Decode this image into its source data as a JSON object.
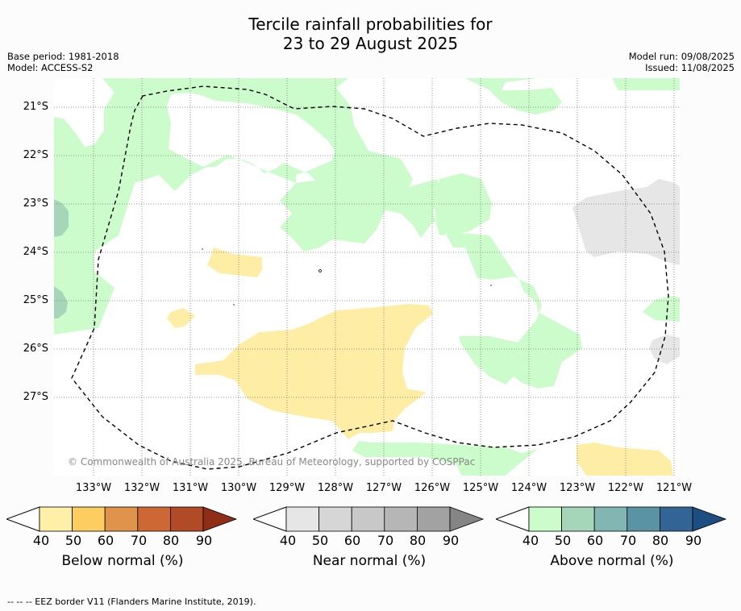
{
  "title": {
    "line1": "Tercile rainfall probabilities for",
    "line2": "23 to 29 August 2025"
  },
  "meta": {
    "base_period": "Base period: 1981-2018",
    "model": "Model: ACCESS-S2",
    "model_run": "Model run: 09/08/2025",
    "issued": "Issued: 11/08/2025"
  },
  "map": {
    "lat_labels": [
      "21°S",
      "22°S",
      "23°S",
      "24°S",
      "25°S",
      "26°S",
      "27°S"
    ],
    "lon_labels": [
      "133°W",
      "132°W",
      "131°W",
      "130°W",
      "129°W",
      "128°W",
      "127°W",
      "126°W",
      "125°W",
      "124°W",
      "123°W",
      "122°W",
      "121°W"
    ],
    "copyright": "© Commonwealth of Australia 2025, Bureau of Meteorology, supported by COSPPac",
    "colors": {
      "background": "#ffffff",
      "below_40": "#fdeda5",
      "near_40": "#e6e6e6",
      "above_40": "#ccfccc",
      "above_50": "#a6d6ba",
      "eez_border": "#000000",
      "grid": "#888888"
    }
  },
  "legend": {
    "ticks": [
      "40",
      "50",
      "60",
      "70",
      "80",
      "90"
    ],
    "below": {
      "title": "Below normal (%)",
      "colors": [
        "#fef0a6",
        "#fecd62",
        "#e0944b",
        "#cd6733",
        "#b04a27",
        "#8f2d17"
      ]
    },
    "near": {
      "title": "Near normal (%)",
      "colors": [
        "#e6e6e6",
        "#d6d6d6",
        "#c8c8c8",
        "#b6b6b6",
        "#a2a2a2",
        "#858585"
      ]
    },
    "above": {
      "title": "Above normal (%)",
      "colors": [
        "#ccfccc",
        "#a6d6ba",
        "#82b6b2",
        "#5a94a2",
        "#326496",
        "#1c4e82"
      ]
    }
  },
  "footnote": "--  --  -- EEZ border V11 (Flanders Marine Institute, 2019)."
}
